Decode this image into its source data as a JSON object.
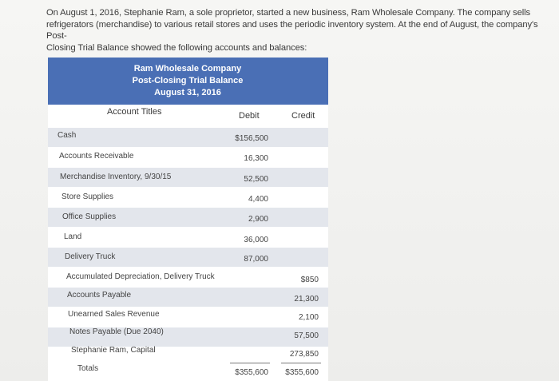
{
  "intro": {
    "line1": "On August 1, 2016, Stephanie Ram, a sole proprietor, started a new business, Ram Wholesale Company. The company sells",
    "line2": "refrigerators (merchandise) to various retail stores and uses the periodic inventory system. At the end of August, the company's Post-",
    "line3": "Closing Trial Balance showed the following accounts and balances:"
  },
  "trial_balance": {
    "company": "Ram Wholesale Company",
    "statement": "Post-Closing Trial Balance",
    "date": "August 31, 2016",
    "col_titles": "Account Titles",
    "col_debit": "Debit",
    "col_credit": "Credit",
    "rows": [
      {
        "title": "Cash",
        "debit": "$156,500",
        "credit": ""
      },
      {
        "title": "Accounts Receivable",
        "debit": "16,300",
        "credit": ""
      },
      {
        "title": "Merchandise Inventory, 9/30/15",
        "debit": "52,500",
        "credit": ""
      },
      {
        "title": "Store Supplies",
        "debit": "4,400",
        "credit": ""
      },
      {
        "title": "Office Supplies",
        "debit": "2,900",
        "credit": ""
      },
      {
        "title": "Land",
        "debit": "36,000",
        "credit": ""
      },
      {
        "title": "Delivery Truck",
        "debit": "87,000",
        "credit": ""
      },
      {
        "title": "Accumulated Depreciation, Delivery Truck",
        "debit": "",
        "credit": "$850"
      },
      {
        "title": "Accounts Payable",
        "debit": "",
        "credit": "21,300"
      },
      {
        "title": "Unearned Sales Revenue",
        "debit": "",
        "credit": "2,100"
      },
      {
        "title": "Notes Payable (Due 2040)",
        "debit": "",
        "credit": "57,500"
      },
      {
        "title": "Stephanie Ram, Capital",
        "debit": "",
        "credit": "273,850"
      }
    ],
    "totals": {
      "title": "Totals",
      "debit": "$355,600",
      "credit": "$355,600"
    }
  }
}
